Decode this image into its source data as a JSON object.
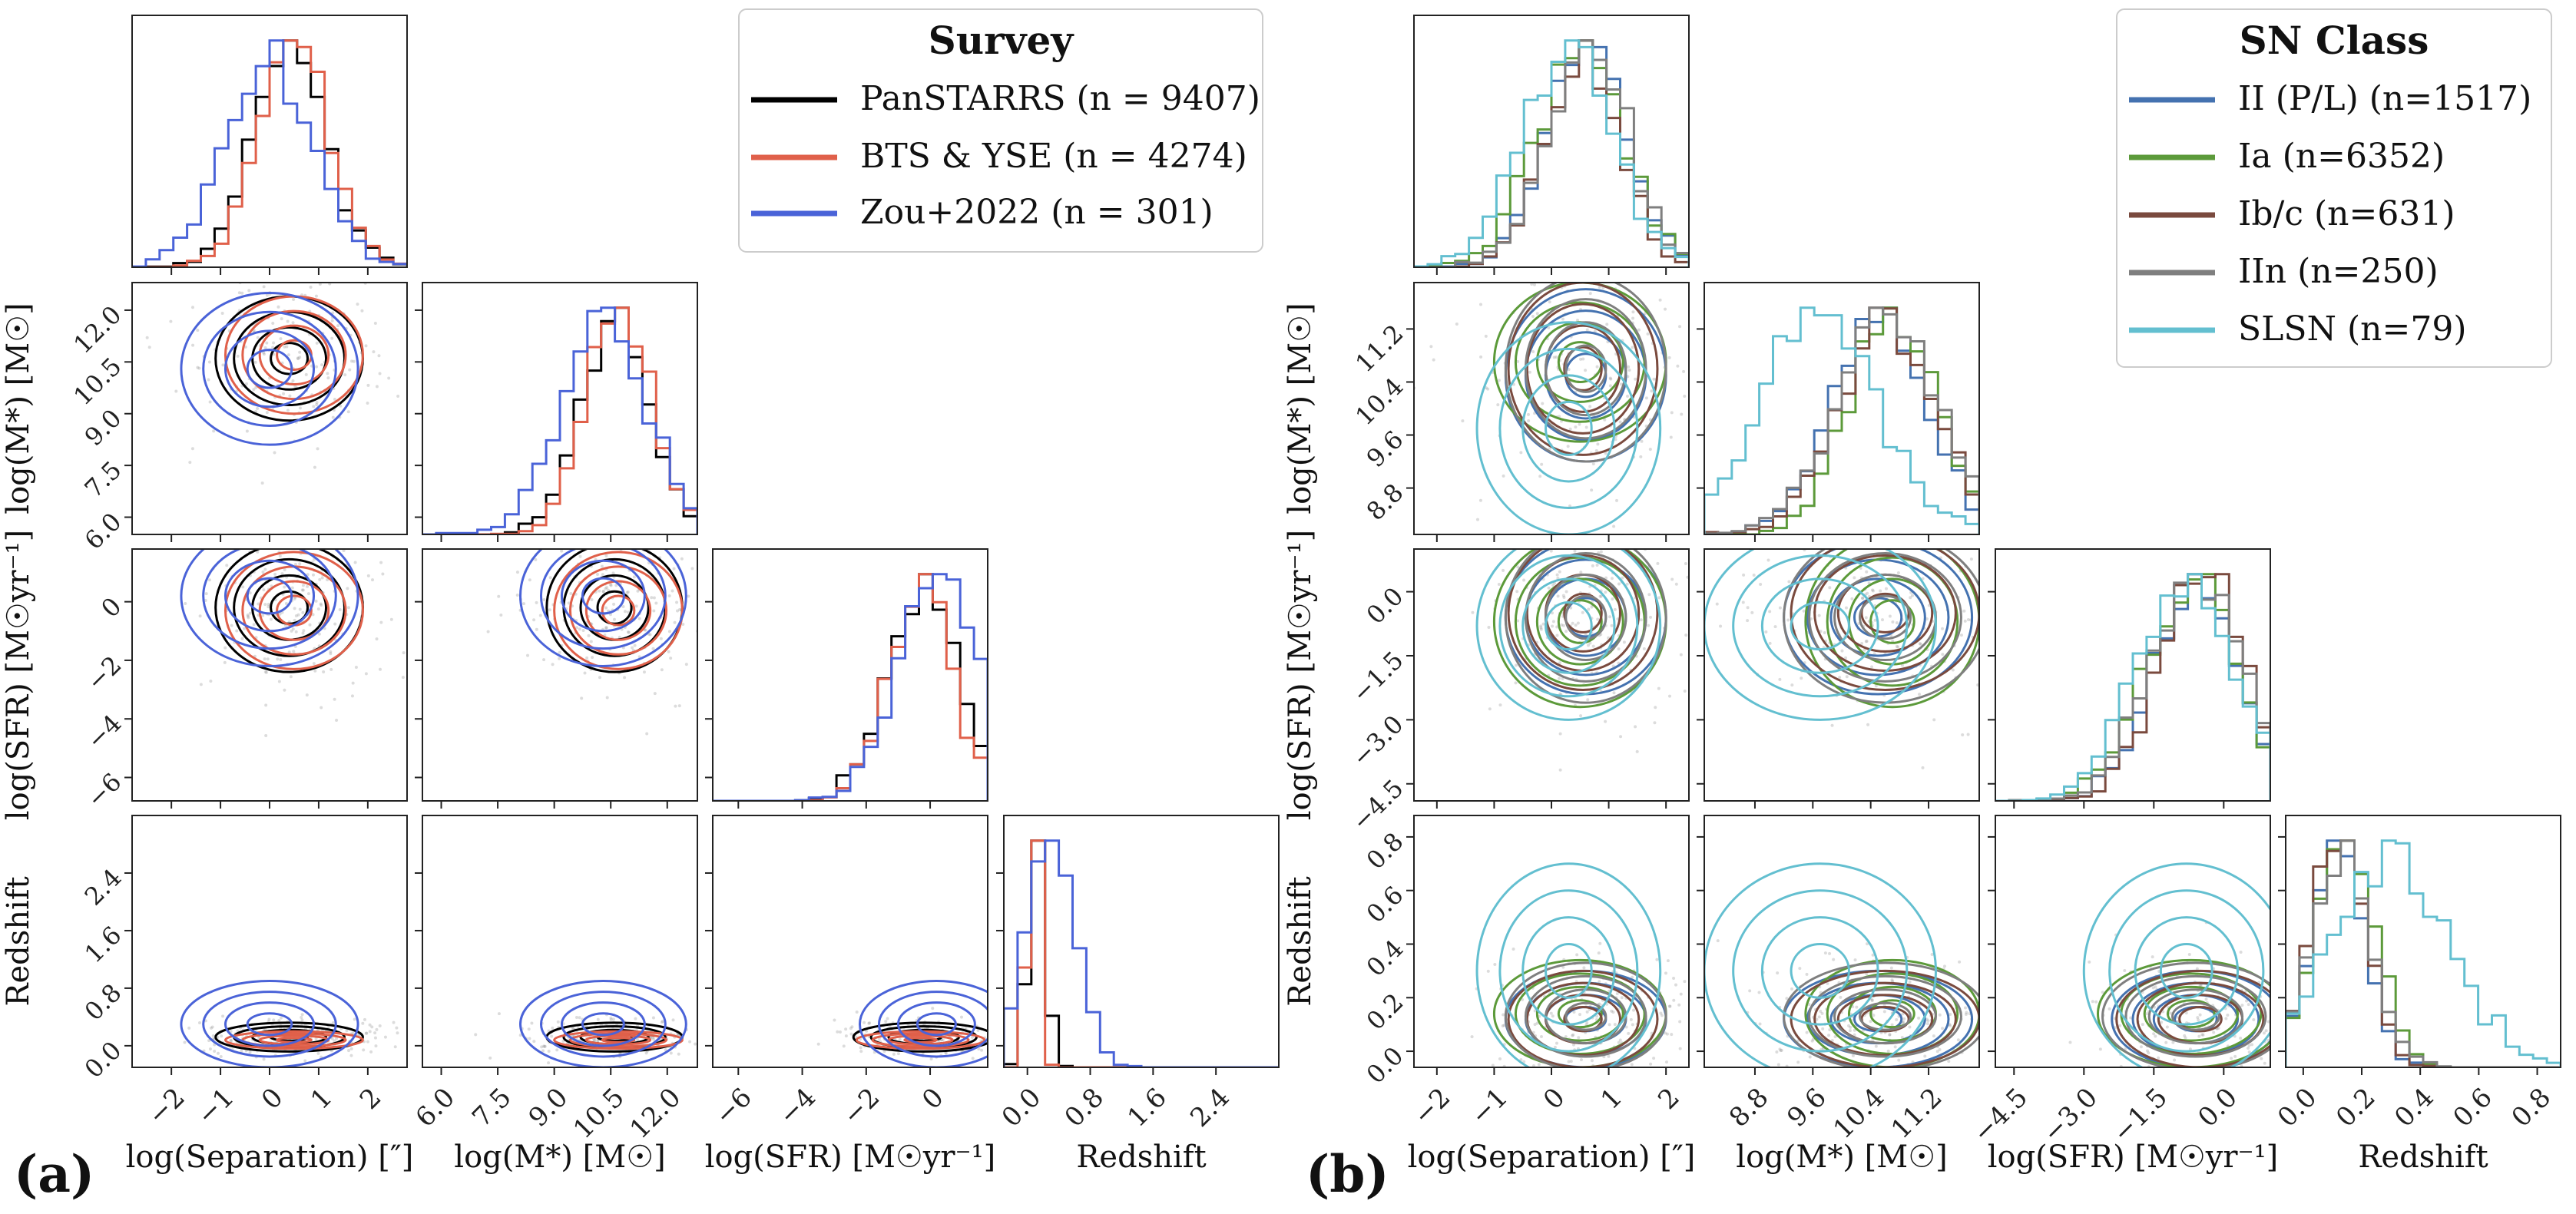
{
  "figure": {
    "panel_labels": [
      "(a)",
      "(b)"
    ],
    "colors": {
      "PanSTARRS": "#000000",
      "BTS_YSE": "#e0604a",
      "Zou2022": "#4a63d8",
      "II": "#4472b0",
      "Ia": "#5c9a3a",
      "Ibc": "#7a4a3e",
      "IIn": "#7f7f7f",
      "SLSN": "#63bfd0"
    }
  },
  "chart_data": [
    {
      "type": "corner",
      "panel": "(a)",
      "variables": [
        "log(Separation) [″]",
        "log(M*) [M☉]",
        "log(SFR) [M☉yr⁻¹]",
        "Redshift"
      ],
      "ranges": [
        [
          -2.8,
          2.8
        ],
        [
          5.5,
          12.8
        ],
        [
          -6.8,
          1.8
        ],
        [
          -0.3,
          3.2
        ]
      ],
      "ticks": [
        [
          -2,
          -1,
          0,
          1,
          2
        ],
        [
          6.0,
          7.5,
          9.0,
          10.5,
          12.0
        ],
        [
          -6,
          -4,
          -2,
          0
        ],
        [
          0.0,
          0.8,
          1.6,
          2.4
        ]
      ],
      "tick_labels": [
        [
          "−2",
          "−1",
          "0",
          "1",
          "2"
        ],
        [
          "6.0",
          "7.5",
          "9.0",
          "10.5",
          "12.0"
        ],
        [
          "−6",
          "−4",
          "−2",
          "0"
        ],
        [
          "0.0",
          "0.8",
          "1.6",
          "2.4"
        ]
      ],
      "legend": {
        "title": "Survey",
        "entries": [
          "PanSTARRS (n = 9407)",
          "BTS & YSE (n = 4274)",
          "Zou+2022 (n = 301)"
        ]
      },
      "series": [
        {
          "name": "PanSTARRS (n = 9407)",
          "color": "#000000",
          "center": [
            0.4,
            10.6,
            -0.2,
            0.12
          ],
          "spread": [
            0.75,
            0.9,
            1.1,
            0.1
          ]
        },
        {
          "name": "BTS & YSE (n = 4274)",
          "color": "#e0604a",
          "center": [
            0.5,
            10.7,
            -0.3,
            0.08
          ],
          "spread": [
            0.7,
            0.85,
            1.0,
            0.06
          ]
        },
        {
          "name": "Zou+2022 (n = 301)",
          "color": "#4a63d8",
          "center": [
            0.0,
            10.3,
            0.2,
            0.3
          ],
          "spread": [
            0.9,
            1.1,
            1.2,
            0.3
          ]
        }
      ]
    },
    {
      "type": "corner",
      "panel": "(b)",
      "variables": [
        "log(Separation) [″]",
        "log(M*) [M☉]",
        "log(SFR) [M☉yr⁻¹]",
        "Redshift"
      ],
      "ranges": [
        [
          -2.4,
          2.4
        ],
        [
          8.1,
          11.9
        ],
        [
          -4.9,
          1.0
        ],
        [
          -0.06,
          0.88
        ]
      ],
      "ticks": [
        [
          -2,
          -1,
          0,
          1,
          2
        ],
        [
          8.8,
          9.6,
          10.4,
          11.2
        ],
        [
          -4.5,
          -3.0,
          -1.5,
          0.0
        ],
        [
          0.0,
          0.2,
          0.4,
          0.6,
          0.8
        ]
      ],
      "tick_labels": [
        [
          "−2",
          "−1",
          "0",
          "1",
          "2"
        ],
        [
          "8.8",
          "9.6",
          "10.4",
          "11.2"
        ],
        [
          "−4.5",
          "−3.0",
          "−1.5",
          "0.0"
        ],
        [
          "0.0",
          "0.2",
          "0.4",
          "0.6",
          "0.8"
        ]
      ],
      "legend": {
        "title": "SN Class",
        "entries": [
          "II (P/L) (n=1517)",
          "Ia (n=6352)",
          "Ib/c (n=631)",
          "IIn (n=250)",
          "SLSN (n=79)"
        ]
      },
      "series": [
        {
          "name": "II (P/L) (n=1517)",
          "color": "#4472b0",
          "center": [
            0.6,
            10.5,
            -0.6,
            0.12
          ],
          "spread": [
            0.7,
            0.65,
            0.9,
            0.09
          ]
        },
        {
          "name": "Ia (n=6352)",
          "color": "#5c9a3a",
          "center": [
            0.5,
            10.7,
            -0.7,
            0.14
          ],
          "spread": [
            0.75,
            0.6,
            1.0,
            0.1
          ]
        },
        {
          "name": "Ib/c (n=631)",
          "color": "#7a4a3e",
          "center": [
            0.55,
            10.6,
            -0.5,
            0.12
          ],
          "spread": [
            0.65,
            0.65,
            0.9,
            0.09
          ]
        },
        {
          "name": "IIn (n=250)",
          "color": "#7f7f7f",
          "center": [
            0.6,
            10.6,
            -0.6,
            0.13
          ],
          "spread": [
            0.7,
            0.7,
            1.0,
            0.1
          ]
        },
        {
          "name": "SLSN (n=79)",
          "color": "#63bfd0",
          "center": [
            0.3,
            9.7,
            -0.8,
            0.3
          ],
          "spread": [
            0.8,
            0.8,
            1.1,
            0.2
          ]
        }
      ]
    }
  ]
}
